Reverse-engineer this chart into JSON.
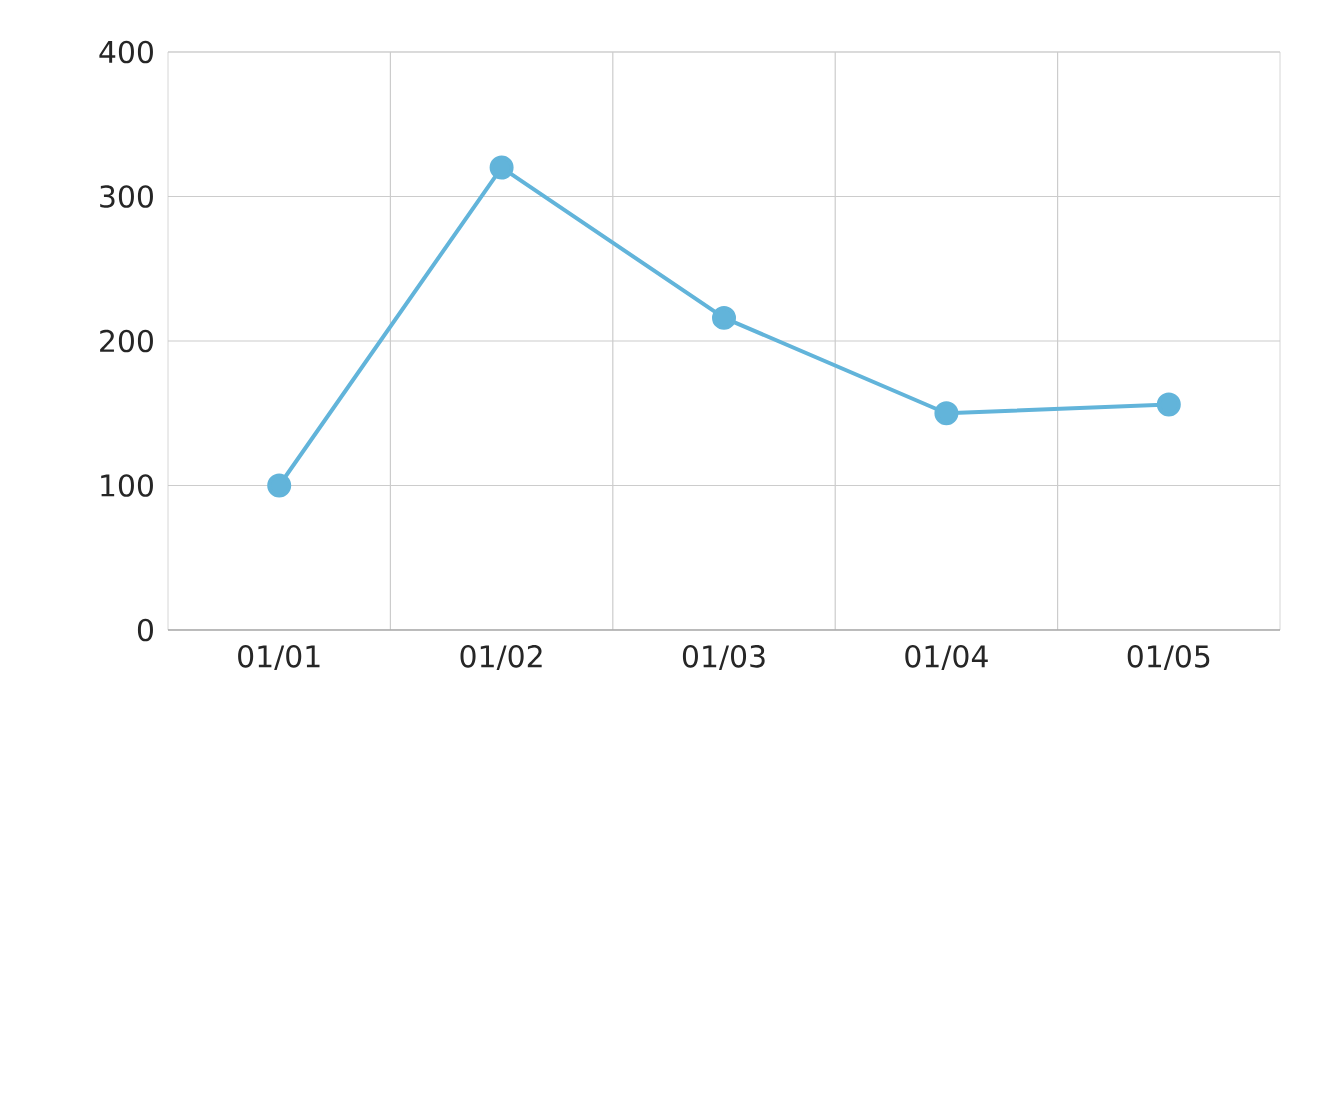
{
  "chart_data": {
    "type": "line",
    "categories": [
      "01/01",
      "01/02",
      "01/03",
      "01/04",
      "01/05"
    ],
    "series": [
      {
        "color": "#62b4da",
        "values": [
          100,
          320,
          216,
          150,
          156
        ]
      }
    ],
    "ylim": [
      0,
      400
    ],
    "yticks": [
      0,
      100,
      200,
      300,
      400
    ],
    "grid": true,
    "marker": "circle",
    "line_style": "solid"
  }
}
